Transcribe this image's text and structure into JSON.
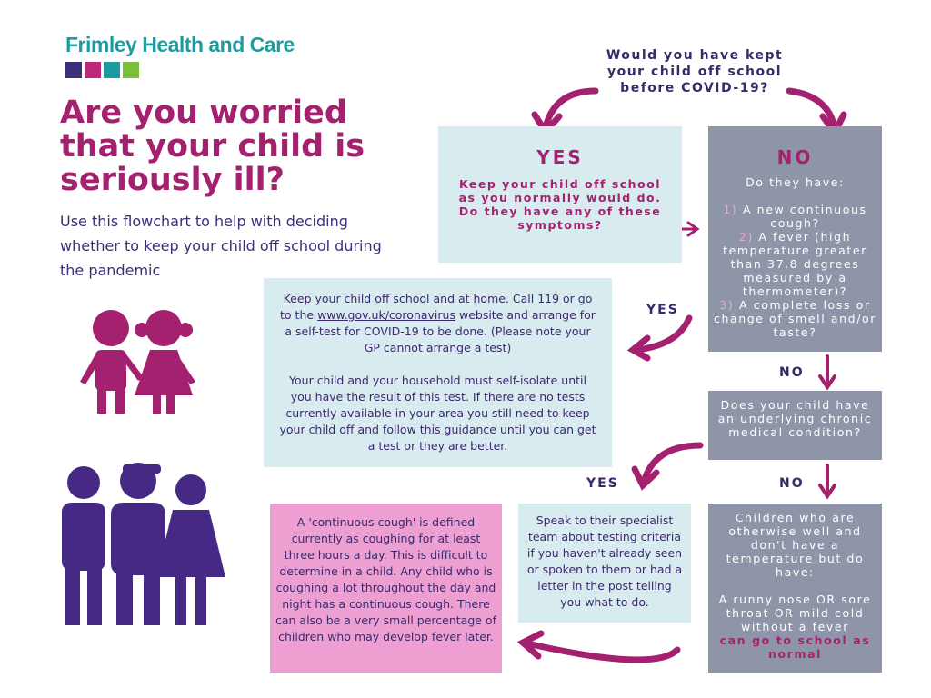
{
  "logo": "Frimley Health and Care",
  "title": "Are you worried that your child is seriously ill?",
  "subtitle": "Use this flowchart to help with deciding whether to keep your child off school during the pandemic",
  "question": "Would you have kept your child off school before COVID-19?",
  "yes_box": {
    "heading": "YES",
    "text": "Keep your child off school as you normally would do. Do they have any of these symptoms?"
  },
  "no_box": {
    "heading": "NO",
    "intro": "Do they have:",
    "items": [
      {
        "number": "1)",
        "text": "A new continuous cough?"
      },
      {
        "number": "2)",
        "text": "A fever (high temperature greater than 37.8 degrees measured by a thermometer)?"
      },
      {
        "number": "3)",
        "text": "A complete loss or change of smell and/or taste?"
      }
    ]
  },
  "arrow_labels": {
    "yes_symptoms": "YES",
    "no_symptoms": "NO",
    "no_chronic": "NO",
    "yes_chronic": "YES"
  },
  "test_box": {
    "before_link": "Keep your child off school and at home. Call 119 or go to the",
    "link": "www.gov.uk/coronavirus",
    "after_link": "website and arrange for a self-test for COVID-19 to be done. (Please note your GP cannot arrange a test)",
    "paragraph2": "Your child and your household must self-isolate until you have the result of this test. If there are no tests currently available in your area you still need to keep your child off and follow this guidance until you can get a test or they are better."
  },
  "chronic_box": "Does your child have an underlying chronic medical condition?",
  "specialist_box": "Speak to their specialist team about testing criteria if you haven't already seen or spoken to them or had a letter in the post telling you what to do.",
  "cough_box": "A 'continuous cough' is defined currently as coughing for at least three hours a day. This is difficult to determine in a child. Any child who is coughing a lot throughout the day and night has a continuous cough. There can also be a very small percentage of children who may develop fever later.",
  "normal_box": {
    "intro": "Children who are otherwise well and don't have a temperature but do have:",
    "text": "A runny nose OR sore throat OR mild cold without a fever",
    "highlight": "can go to school as normal"
  }
}
